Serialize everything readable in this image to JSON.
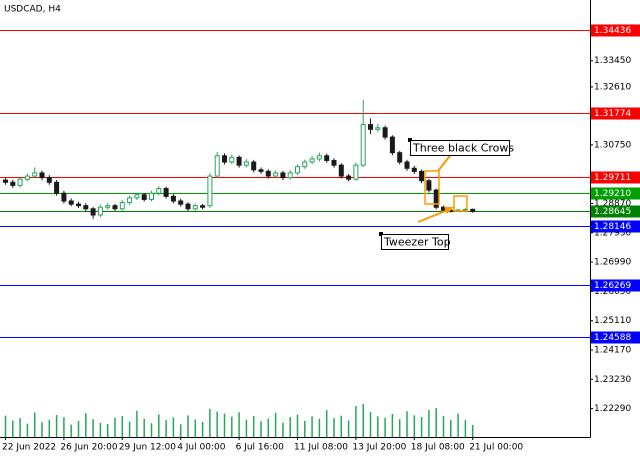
{
  "chart_data": {
    "type": "candlestick",
    "title": "USDCAD, H4",
    "categories": [
      "22 Jun 2022",
      null,
      null,
      null,
      null,
      null,
      null,
      null,
      "26 Jun 20:00",
      null,
      null,
      null,
      null,
      null,
      null,
      null,
      "29 Jun 12:00",
      null,
      null,
      null,
      null,
      null,
      null,
      null,
      "4 Jul 00:00",
      null,
      null,
      null,
      null,
      null,
      null,
      null,
      "6 Jul 16:00",
      null,
      null,
      null,
      null,
      null,
      null,
      null,
      "11 Jul 08:00",
      null,
      null,
      null,
      null,
      null,
      null,
      null,
      "13 Jul 20:00",
      null,
      null,
      null,
      null,
      null,
      null,
      null,
      "18 Jul 08:00",
      null,
      null,
      null,
      null,
      null,
      null,
      null,
      "21 Jul 00:00"
    ],
    "open": [
      1.2962,
      1.2955,
      1.2945,
      1.2965,
      1.2975,
      1.2985,
      1.297,
      1.2955,
      1.292,
      1.2895,
      1.2885,
      1.288,
      1.287,
      1.285,
      1.2875,
      1.288,
      1.287,
      1.289,
      1.2905,
      1.2915,
      1.29,
      1.292,
      1.2935,
      1.291,
      1.2895,
      1.2885,
      1.287,
      1.288,
      1.288,
      1.2975,
      1.304,
      1.302,
      1.3035,
      1.301,
      1.302,
      1.2995,
      1.299,
      1.2975,
      1.2985,
      1.297,
      1.2985,
      1.3005,
      1.302,
      1.303,
      1.304,
      1.3025,
      1.301,
      1.2975,
      1.2965,
      1.301,
      1.314,
      1.3125,
      1.313,
      1.31,
      1.305,
      1.302,
      1.3,
      1.299,
      1.296,
      1.293,
      1.2875,
      1.2865,
      1.2863,
      1.2866,
      1.2868
    ],
    "high": [
      1.297,
      1.2963,
      1.2973,
      1.2983,
      1.3003,
      1.2992,
      1.2978,
      1.2962,
      1.2928,
      1.2903,
      1.2893,
      1.2888,
      1.2876,
      1.2883,
      1.2888,
      1.2886,
      1.2898,
      1.2912,
      1.2922,
      1.2921,
      1.2928,
      1.2942,
      1.2941,
      1.2917,
      1.2902,
      1.2891,
      1.2887,
      1.2886,
      1.2984,
      1.3052,
      1.3048,
      1.3044,
      1.3041,
      1.3029,
      1.3027,
      1.3003,
      1.2997,
      1.2993,
      1.2992,
      1.2994,
      1.3013,
      1.3028,
      1.304,
      1.305,
      1.3047,
      1.3032,
      1.3016,
      1.2982,
      1.3018,
      1.322,
      1.316,
      1.3142,
      1.3137,
      1.3106,
      1.3056,
      1.3027,
      1.3008,
      1.2996,
      1.2966,
      1.2935,
      1.288,
      1.287,
      1.287,
      1.2872,
      1.2871
    ],
    "low": [
      1.2947,
      1.2937,
      1.2938,
      1.2958,
      1.2968,
      1.2962,
      1.2947,
      1.2912,
      1.2887,
      1.2878,
      1.2872,
      1.2862,
      1.2838,
      1.2843,
      1.2867,
      1.2863,
      1.2864,
      1.2883,
      1.2898,
      1.2893,
      1.2894,
      1.2913,
      1.2903,
      1.2888,
      1.2877,
      1.2862,
      1.2864,
      1.2868,
      1.2873,
      1.2968,
      1.3012,
      1.3013,
      1.3002,
      1.3003,
      1.2987,
      1.2982,
      1.2967,
      1.2968,
      1.2962,
      1.2963,
      1.2978,
      1.2998,
      1.3013,
      1.3022,
      1.3018,
      1.3002,
      1.2967,
      1.2958,
      1.296,
      1.3004,
      1.311,
      1.3117,
      1.3092,
      1.3042,
      1.3012,
      1.2992,
      1.2982,
      1.2952,
      1.2922,
      1.2868,
      1.2858,
      1.2858,
      1.2859,
      1.2862,
      1.2857
    ],
    "close": [
      1.2955,
      1.2945,
      1.2965,
      1.2975,
      1.2985,
      1.297,
      1.2955,
      1.292,
      1.2895,
      1.2885,
      1.288,
      1.287,
      1.285,
      1.2875,
      1.288,
      1.287,
      1.289,
      1.2905,
      1.2915,
      1.29,
      1.292,
      1.2935,
      1.291,
      1.2895,
      1.2885,
      1.287,
      1.288,
      1.2875,
      1.2975,
      1.304,
      1.302,
      1.3035,
      1.301,
      1.302,
      1.2995,
      1.299,
      1.2975,
      1.2985,
      1.297,
      1.2985,
      1.3005,
      1.302,
      1.303,
      1.304,
      1.3025,
      1.301,
      1.2975,
      1.2965,
      1.301,
      1.314,
      1.3125,
      1.313,
      1.31,
      1.305,
      1.302,
      1.3,
      1.299,
      1.296,
      1.293,
      1.2875,
      1.2865,
      1.2863,
      1.2866,
      1.2868,
      1.2862
    ],
    "volumes": [
      6200,
      4800,
      5500,
      3900,
      7100,
      4300,
      5000,
      6400,
      5800,
      3600,
      4700,
      6900,
      5200,
      4100,
      3800,
      5600,
      6100,
      4500,
      7600,
      5300,
      4000,
      6600,
      4900,
      5700,
      3700,
      6300,
      5100,
      4400,
      8200,
      7400,
      6800,
      5900,
      7200,
      5000,
      6100,
      4600,
      5400,
      7000,
      4200,
      5800,
      6500,
      4700,
      6000,
      5300,
      7800,
      5500,
      6200,
      4800,
      9000,
      9600,
      7300,
      6000,
      5600,
      6700,
      5200,
      7500,
      6300,
      5800,
      7900,
      8400,
      6100,
      5000,
      6800,
      4900,
      3500
    ],
    "bull_color": "#26a65b",
    "bear_color": "#1a1a1a",
    "volume_color": "#26a65b",
    "ylim": [
      1.21379,
      1.35398
    ],
    "yticks": [
      {
        "value": 1.3345,
        "label": "1.33450"
      },
      {
        "value": 1.3261,
        "label": "1.32610"
      },
      {
        "value": 1.3075,
        "label": "1.30750"
      },
      {
        "value": 1.2887,
        "label": "1.28870"
      },
      {
        "value": 1.2793,
        "label": "1.27930"
      },
      {
        "value": 1.2699,
        "label": "1.26990"
      },
      {
        "value": 1.2605,
        "label": "1.26050"
      },
      {
        "value": 1.2511,
        "label": "1.25110"
      },
      {
        "value": 1.2417,
        "label": "1.24170"
      },
      {
        "value": 1.2323,
        "label": "1.23230"
      },
      {
        "value": 1.2229,
        "label": "1.22290"
      }
    ],
    "levels": [
      {
        "value": 1.34436,
        "label": "1.34436",
        "color": "#ff0000"
      },
      {
        "value": 1.31774,
        "label": "1.31774",
        "color": "#ff0000"
      },
      {
        "value": 1.29711,
        "label": "1.29711",
        "color": "#ff0000"
      },
      {
        "value": 1.2921,
        "label": "1.29210",
        "color": "#00a000"
      },
      {
        "value": 1.28645,
        "label": "1.28645",
        "color": "#008000"
      },
      {
        "value": 1.28146,
        "label": "1.28146",
        "color": "#0000ff"
      },
      {
        "value": 1.26269,
        "label": "1.26269",
        "color": "#0000ff"
      },
      {
        "value": 1.24588,
        "label": "1.24588",
        "color": "#0000ff"
      }
    ],
    "annotations": [
      "Three black Crows",
      "Tweezer Top"
    ]
  }
}
